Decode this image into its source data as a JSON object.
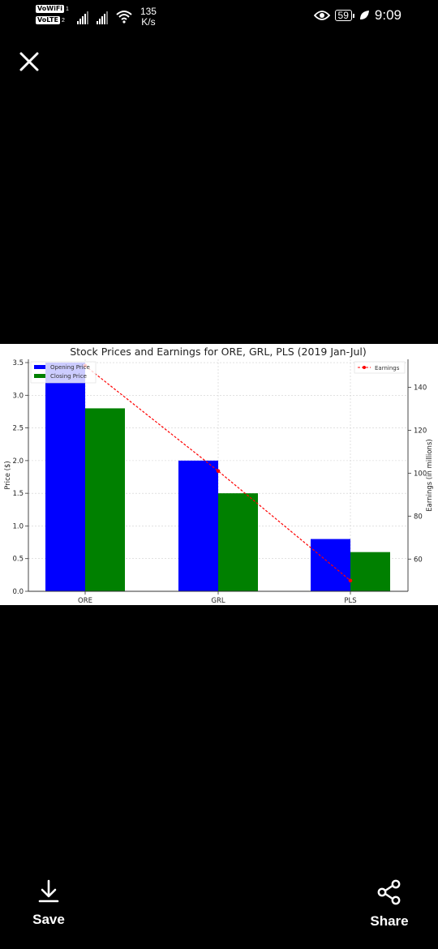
{
  "status_bar": {
    "vowifi": "VoWiFi",
    "volte": "VoLTE",
    "sim1": "1",
    "sim2": "2",
    "speed_value": "135",
    "speed_unit": "K/s",
    "battery": "59",
    "time": "9:09"
  },
  "viewer": {
    "close_icon": "close-icon",
    "save_label": "Save",
    "share_label": "Share"
  },
  "chart_data": {
    "type": "bar",
    "title": "Stock Prices and Earnings for ORE, GRL, PLS (2019 Jan-Jul)",
    "categories": [
      "ORE",
      "GRL",
      "PLS"
    ],
    "series": [
      {
        "name": "Opening Price",
        "values": [
          3.5,
          2.0,
          0.8
        ],
        "color": "#0000ff"
      },
      {
        "name": "Closing Price",
        "values": [
          2.8,
          1.5,
          0.6
        ],
        "color": "#008000"
      }
    ],
    "line_series": {
      "name": "Earnings",
      "values": [
        150,
        101,
        50
      ],
      "color": "#ff0000",
      "axis": "right"
    },
    "ylabel": "Price ($)",
    "y2label": "Earnings (in millions)",
    "ylim": [
      0,
      3.55
    ],
    "y2lim": [
      45,
      153
    ],
    "yticks": [
      "0.0",
      "0.5",
      "1.0",
      "1.5",
      "2.0",
      "2.5",
      "3.0",
      "3.5"
    ],
    "y2ticks": [
      "60",
      "80",
      "100",
      "120",
      "140"
    ],
    "grid": true,
    "legend_left": "top-left",
    "legend_right": "top-right"
  }
}
